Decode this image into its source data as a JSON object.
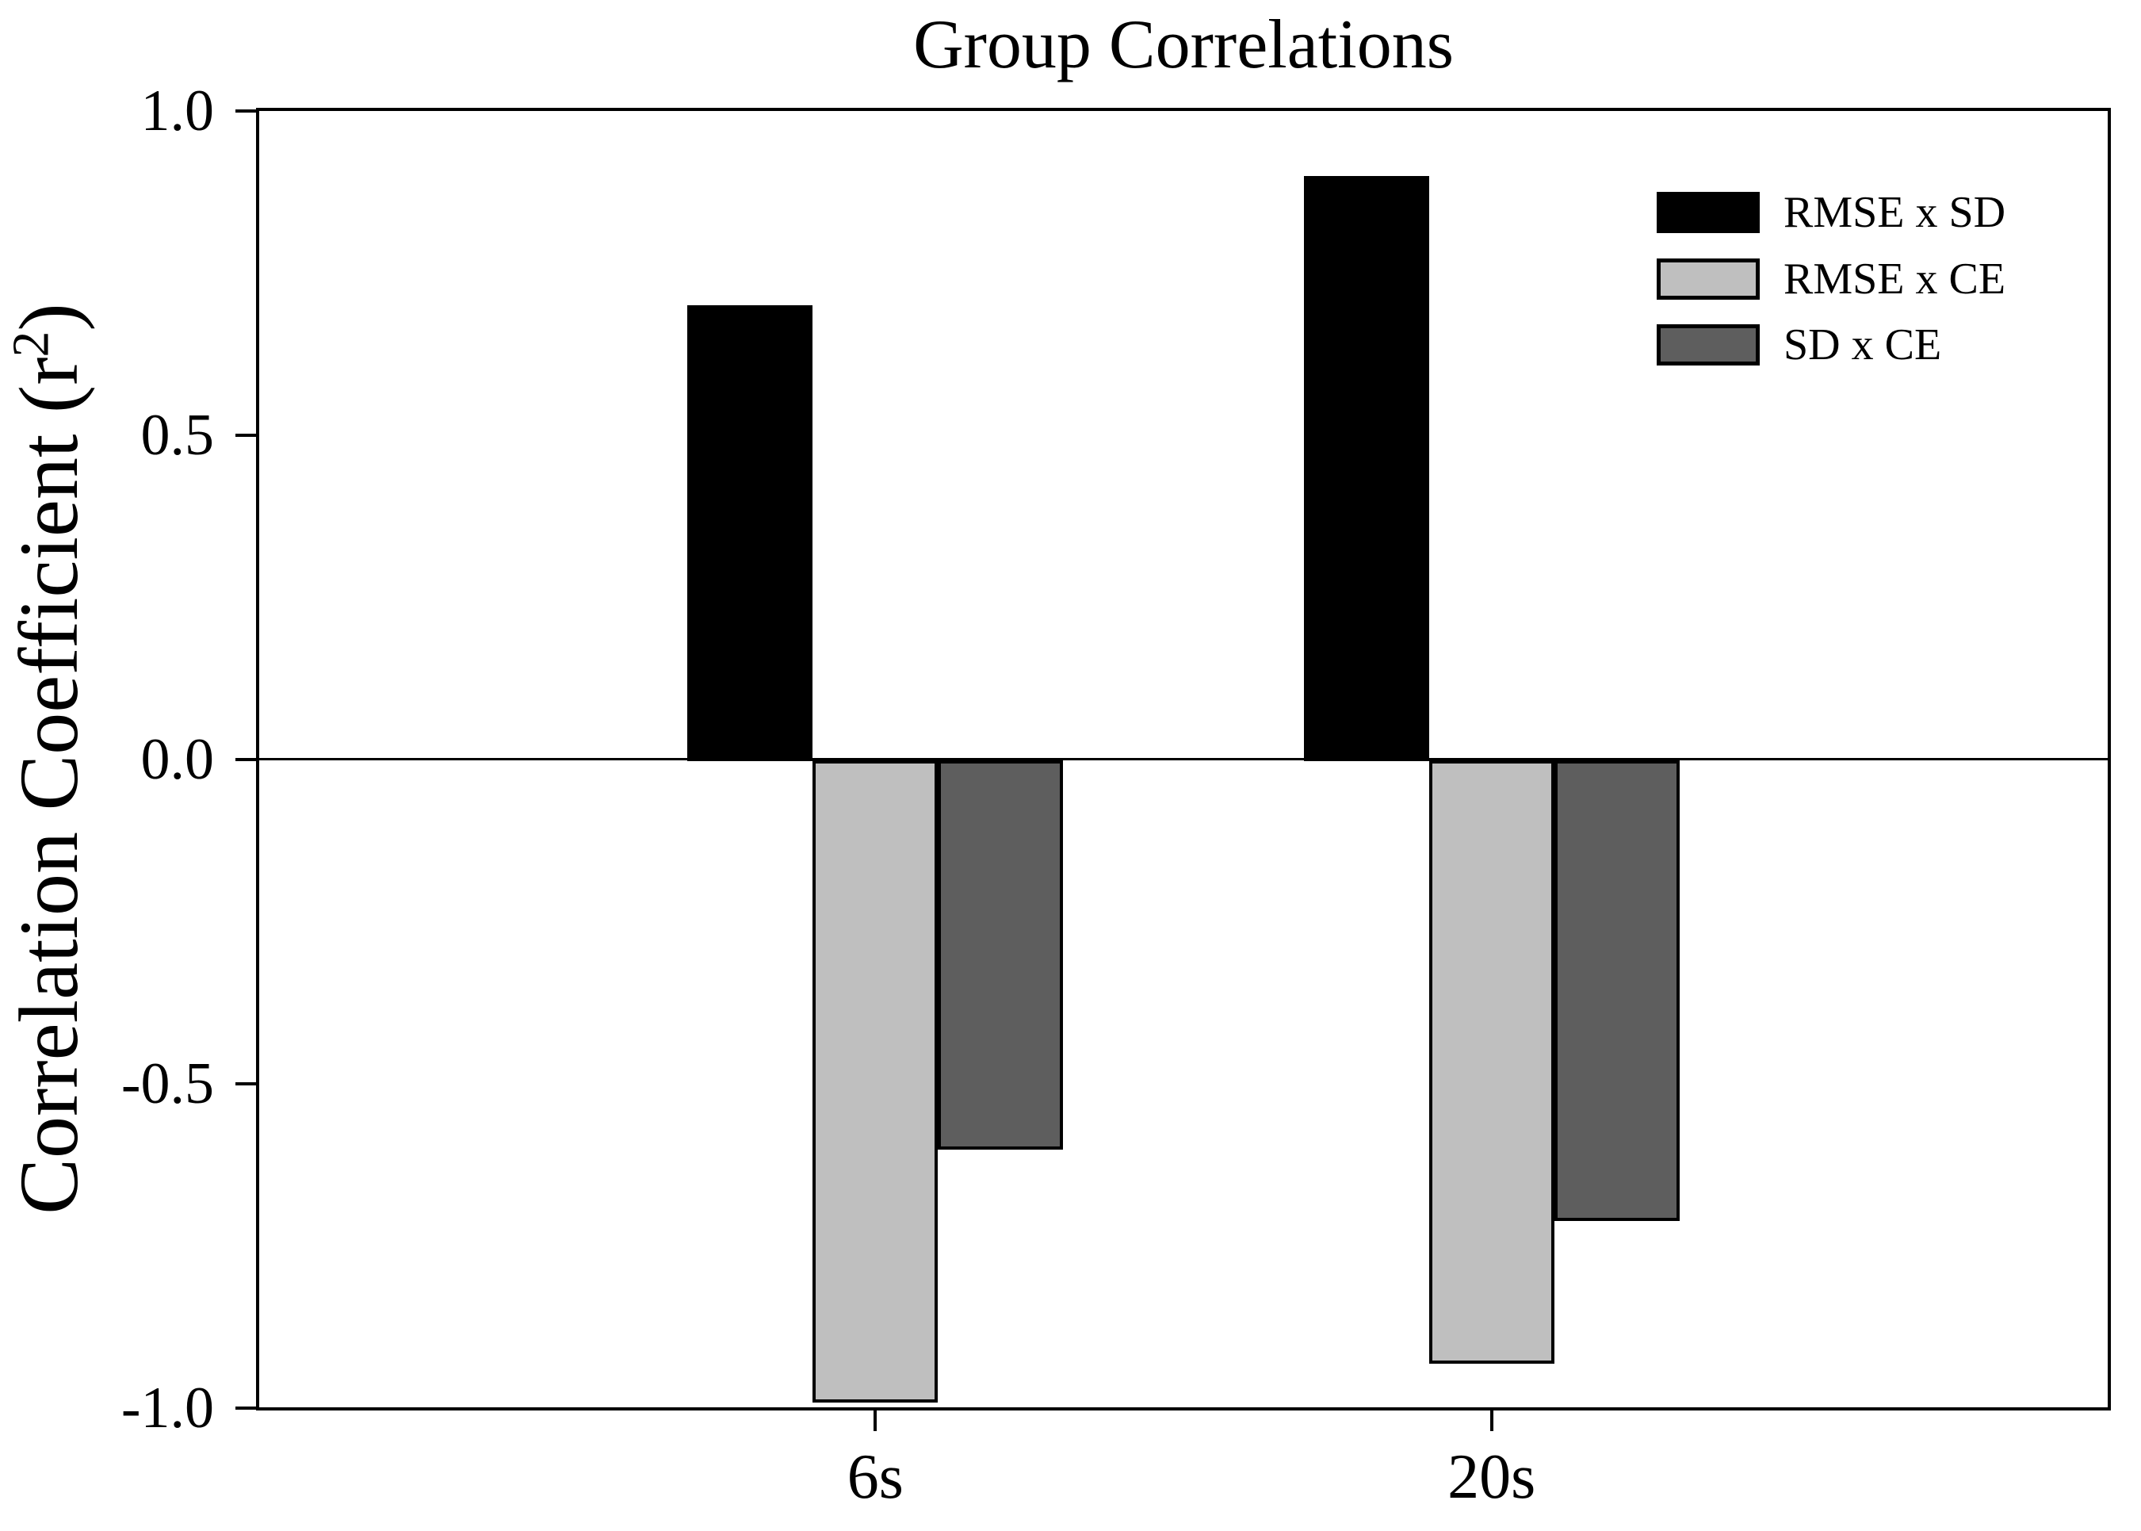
{
  "chart_data": {
    "type": "bar",
    "title": "Group Correlations",
    "ylabel": "Correlation Coefficient (r²)",
    "xlabel": "",
    "categories": [
      "6s",
      "20s"
    ],
    "series": [
      {
        "name": "RMSE x SD",
        "color": "#000000",
        "values": [
          0.7,
          0.9
        ]
      },
      {
        "name": "RMSE x CE",
        "color": "#bfbfbf",
        "values": [
          -0.99,
          -0.93
        ]
      },
      {
        "name": "SD x CE",
        "color": "#5e5e5e",
        "values": [
          -0.6,
          -0.71
        ]
      }
    ],
    "ylim": [
      -1.0,
      1.0
    ],
    "yticks": [
      1.0,
      0.5,
      0.0,
      -0.5,
      -1.0
    ],
    "ytick_labels": [
      "1.0",
      "0.5",
      "0.0",
      "-0.5",
      "-1.0"
    ],
    "grid": false,
    "zero_line": true,
    "legend_position": "top-right",
    "bar_edge_color": "#000000",
    "background_color": "#ffffff"
  },
  "y_axis_label": {
    "prefix": "Correlation Coefficient (r",
    "sup": "2",
    "suffix": ")"
  }
}
